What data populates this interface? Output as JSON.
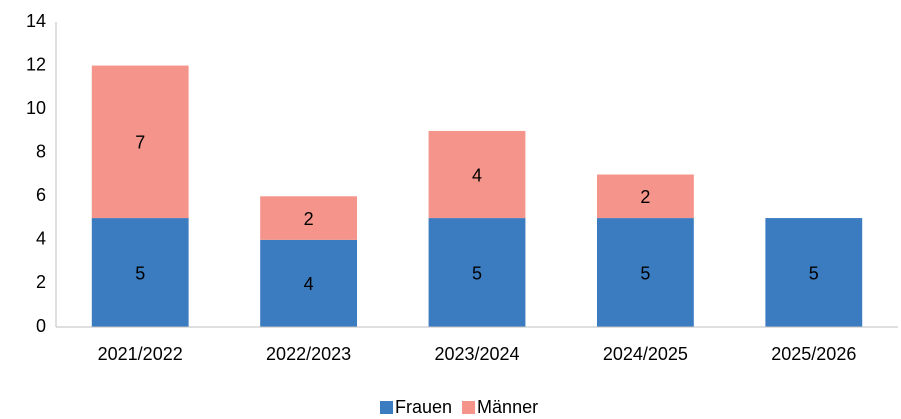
{
  "chart_data": {
    "type": "stacked_bar",
    "categories": [
      "2021/2022",
      "2022/2023",
      "2023/2024",
      "2024/2025",
      "2025/2026"
    ],
    "series": [
      {
        "name": "Frauen",
        "color": "#3b7cc0",
        "values": [
          5,
          4,
          5,
          5,
          5
        ]
      },
      {
        "name": "Männer",
        "color": "#f4948a",
        "values": [
          7,
          2,
          4,
          2,
          null
        ]
      }
    ],
    "ylim": [
      0,
      14
    ],
    "yticks": [
      0,
      2,
      4,
      6,
      8,
      10,
      12,
      14
    ],
    "grid": false,
    "legend": "bottom"
  }
}
